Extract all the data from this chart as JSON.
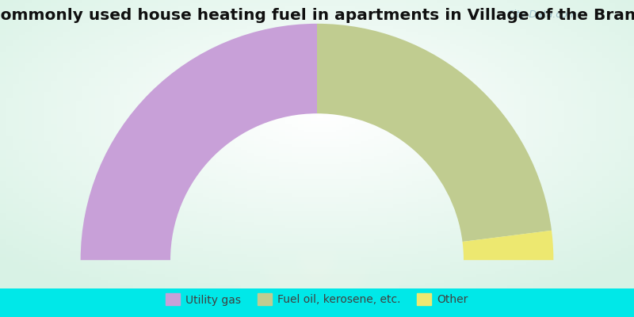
{
  "title": "Most commonly used house heating fuel in apartments in Village of the Branch, NY",
  "values": [
    50,
    46,
    4
  ],
  "labels": [
    "Utility gas",
    "Fuel oil, kerosene, etc.",
    "Other"
  ],
  "colors": [
    "#c8a0d8",
    "#c0cc90",
    "#ede870"
  ],
  "bg_color_outer": "#00e8e8",
  "bg_color_chart": "#c8e8d0",
  "watermark": "City-Data.com",
  "legend_text_color": "#404040",
  "title_color": "#101010",
  "title_fontsize": 14.5,
  "outer_r": 1.0,
  "inner_r": 0.62
}
